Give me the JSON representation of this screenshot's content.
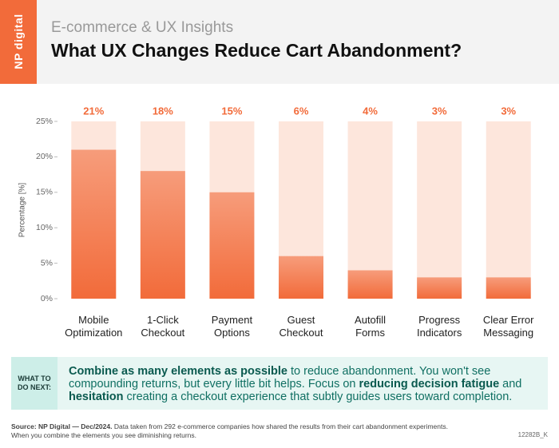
{
  "header": {
    "badge": "NP digital",
    "subtitle": "E-commerce & UX Insights",
    "title": "What UX Changes Reduce Cart Abandonment?"
  },
  "chart_data": {
    "type": "bar",
    "categories": [
      "Mobile Optimization",
      "1-Click Checkout",
      "Payment Options",
      "Guest Checkout",
      "Autofill Forms",
      "Progress Indicators",
      "Clear Error Messaging"
    ],
    "values": [
      21,
      18,
      15,
      6,
      4,
      3,
      3
    ],
    "value_labels": [
      "21%",
      "18%",
      "15%",
      "6%",
      "4%",
      "3%",
      "3%"
    ],
    "color": "#f26b3a",
    "track_color": "#fde6dc",
    "y_label": "Percentage [%]",
    "ylim": [
      0,
      25
    ],
    "yticks": [
      {
        "value": 0,
        "label": "0%"
      },
      {
        "value": 5,
        "label": "5%"
      },
      {
        "value": 10,
        "label": "10%"
      },
      {
        "value": 15,
        "label": "15%"
      },
      {
        "value": 20,
        "label": "20%"
      },
      {
        "value": 25,
        "label": "25%"
      }
    ],
    "grid": false
  },
  "next_steps": {
    "label": "WHAT TO DO NEXT:",
    "text": [
      {
        "text": "Combine as many elements as possible",
        "bold": true
      },
      {
        "text": " to reduce abandonment. You won't see compounding returns, but every little bit helps. Focus on ",
        "bold": false
      },
      {
        "text": "reducing decision fatigue",
        "bold": true
      },
      {
        "text": " and ",
        "bold": false
      },
      {
        "text": "hesitation",
        "bold": true
      },
      {
        "text": " creating a checkout experience that subtly guides users toward completion.",
        "bold": false
      }
    ]
  },
  "footer": {
    "source_label": "Source:",
    "source": "NP Digital — Dec/2024.",
    "note": "Data taken from 292 e-commerce companies how shared the results from their cart abandonment experiments. When you combine the elements you see diminishing returns.",
    "code": "12282B_K"
  }
}
